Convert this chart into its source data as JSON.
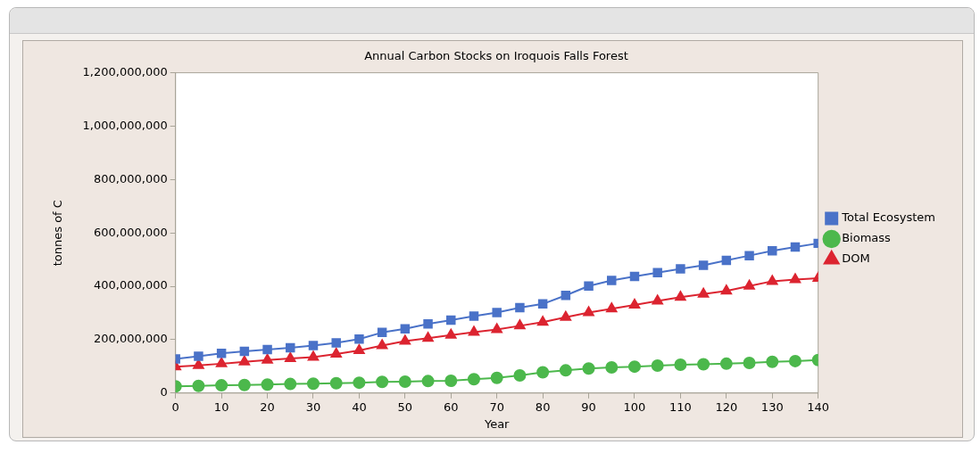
{
  "chart_data": {
    "type": "line",
    "title": "Annual Carbon Stocks on Iroquois Falls Forest",
    "xlabel": "Year",
    "ylabel": "tonnes of C",
    "x": [
      0,
      5,
      10,
      15,
      20,
      25,
      30,
      35,
      40,
      45,
      50,
      55,
      60,
      65,
      70,
      75,
      80,
      85,
      90,
      95,
      100,
      105,
      110,
      115,
      120,
      125,
      130,
      135,
      140
    ],
    "xlim": [
      0,
      140
    ],
    "xticks": [
      0,
      10,
      20,
      30,
      40,
      50,
      60,
      70,
      80,
      90,
      100,
      110,
      120,
      130,
      140
    ],
    "ylim": [
      0,
      1200000000
    ],
    "yticks": [
      {
        "value": 0,
        "label": "0"
      },
      {
        "value": 200000000,
        "label": "200,000,000"
      },
      {
        "value": 400000000,
        "label": "400,000,000"
      },
      {
        "value": 600000000,
        "label": "600,000,000"
      },
      {
        "value": 800000000,
        "label": "800,000,000"
      },
      {
        "value": 1000000000,
        "label": "1,000,000,000"
      },
      {
        "value": 1200000000,
        "label": "1,200,000,000"
      }
    ],
    "grid": false,
    "legend": "right",
    "series": [
      {
        "name": "Total Ecosystem",
        "color": "#4a72c8",
        "marker": "square",
        "values": [
          128000000,
          138000000,
          149000000,
          156000000,
          163000000,
          170000000,
          178000000,
          188000000,
          202000000,
          227000000,
          241000000,
          259000000,
          273000000,
          288000000,
          302000000,
          320000000,
          334000000,
          366000000,
          401000000,
          422000000,
          437000000,
          451000000,
          465000000,
          479000000,
          497000000,
          515000000,
          533000000,
          547000000,
          561000000
        ]
      },
      {
        "name": "Biomass",
        "color": "#4cb84c",
        "marker": "circle",
        "values": [
          25000000,
          27000000,
          29000000,
          30000000,
          32000000,
          34000000,
          35000000,
          37000000,
          39000000,
          42000000,
          43000000,
          45000000,
          46000000,
          52000000,
          57000000,
          66000000,
          78000000,
          85000000,
          92000000,
          96000000,
          99000000,
          103000000,
          106000000,
          108000000,
          110000000,
          113000000,
          117000000,
          120000000,
          124000000
        ]
      },
      {
        "name": "DOM",
        "color": "#dc2430",
        "marker": "triangle",
        "values": [
          99000000,
          104000000,
          110000000,
          117000000,
          124000000,
          130000000,
          135000000,
          146000000,
          160000000,
          178000000,
          195000000,
          206000000,
          217000000,
          228000000,
          238000000,
          252000000,
          266000000,
          284000000,
          302000000,
          316000000,
          330000000,
          345000000,
          359000000,
          371000000,
          383000000,
          401000000,
          419000000,
          425000000,
          430000000
        ]
      }
    ]
  }
}
